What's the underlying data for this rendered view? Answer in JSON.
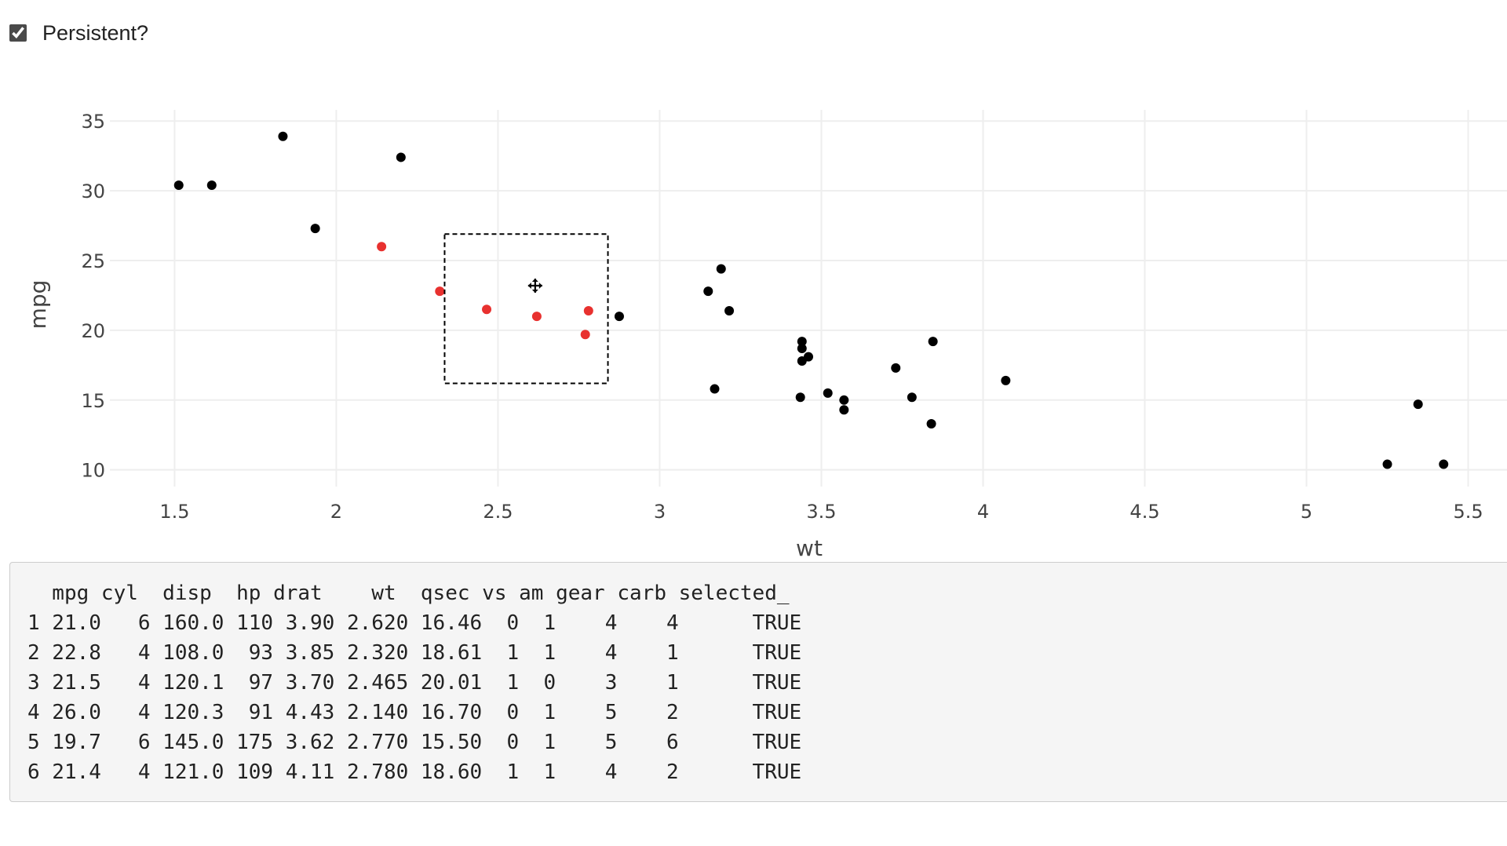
{
  "controls": {
    "persistent_label": "Persistent?",
    "persistent_checked": true
  },
  "chart_data": {
    "type": "scatter",
    "title": "",
    "xlabel": "wt",
    "ylabel": "mpg",
    "xlim": [
      1.3,
      5.62
    ],
    "ylim": [
      8.8,
      35.8
    ],
    "xticks": [
      1.5,
      2,
      2.5,
      3,
      3.5,
      4,
      4.5,
      5,
      5.5
    ],
    "yticks": [
      10,
      15,
      20,
      25,
      30,
      35
    ],
    "grid": true,
    "colors": {
      "unselected": "#000000",
      "selected": "#e8312f",
      "grid": "#eeeeee"
    },
    "points": [
      {
        "x": 2.62,
        "y": 21.0,
        "selected": true
      },
      {
        "x": 2.875,
        "y": 21.0,
        "selected": false
      },
      {
        "x": 2.32,
        "y": 22.8,
        "selected": true
      },
      {
        "x": 3.215,
        "y": 21.4,
        "selected": false
      },
      {
        "x": 3.44,
        "y": 18.7,
        "selected": false
      },
      {
        "x": 3.46,
        "y": 18.1,
        "selected": false
      },
      {
        "x": 3.57,
        "y": 14.3,
        "selected": false
      },
      {
        "x": 3.19,
        "y": 24.4,
        "selected": false
      },
      {
        "x": 3.15,
        "y": 22.8,
        "selected": false
      },
      {
        "x": 3.44,
        "y": 19.2,
        "selected": false
      },
      {
        "x": 3.44,
        "y": 17.8,
        "selected": false
      },
      {
        "x": 4.07,
        "y": 16.4,
        "selected": false
      },
      {
        "x": 3.73,
        "y": 17.3,
        "selected": false
      },
      {
        "x": 3.78,
        "y": 15.2,
        "selected": false
      },
      {
        "x": 5.25,
        "y": 10.4,
        "selected": false
      },
      {
        "x": 5.424,
        "y": 10.4,
        "selected": false
      },
      {
        "x": 5.345,
        "y": 14.7,
        "selected": false
      },
      {
        "x": 2.2,
        "y": 32.4,
        "selected": false
      },
      {
        "x": 1.615,
        "y": 30.4,
        "selected": false
      },
      {
        "x": 1.835,
        "y": 33.9,
        "selected": false
      },
      {
        "x": 2.465,
        "y": 21.5,
        "selected": true
      },
      {
        "x": 3.52,
        "y": 15.5,
        "selected": false
      },
      {
        "x": 3.435,
        "y": 15.2,
        "selected": false
      },
      {
        "x": 3.84,
        "y": 13.3,
        "selected": false
      },
      {
        "x": 3.845,
        "y": 19.2,
        "selected": false
      },
      {
        "x": 1.935,
        "y": 27.3,
        "selected": false
      },
      {
        "x": 2.14,
        "y": 26.0,
        "selected": true
      },
      {
        "x": 1.513,
        "y": 30.4,
        "selected": false
      },
      {
        "x": 3.17,
        "y": 15.8,
        "selected": false
      },
      {
        "x": 2.77,
        "y": 19.7,
        "selected": true
      },
      {
        "x": 3.57,
        "y": 15.0,
        "selected": false
      },
      {
        "x": 2.78,
        "y": 21.4,
        "selected": true
      }
    ],
    "selection_box": {
      "x0": 2.335,
      "x1": 2.84,
      "y0": 16.2,
      "y1": 26.9
    },
    "cursor": {
      "icon": "move-cursor-icon",
      "x": 2.615,
      "y": 23.2
    }
  },
  "output": {
    "lines": [
      "  mpg cyl  disp  hp drat    wt  qsec vs am gear carb selected_",
      "1 21.0   6 160.0 110 3.90 2.620 16.46  0  1    4    4      TRUE",
      "2 22.8   4 108.0  93 3.85 2.320 18.61  1  1    4    1      TRUE",
      "3 21.5   4 120.1  97 3.70 2.465 20.01  1  0    3    1      TRUE",
      "4 26.0   4 120.3  91 4.43 2.140 16.70  0  1    5    2      TRUE",
      "5 19.7   6 145.0 175 3.62 2.770 15.50  0  1    5    6      TRUE",
      "6 21.4   4 121.0 109 4.11 2.780 18.60  1  1    4    2      TRUE"
    ]
  }
}
